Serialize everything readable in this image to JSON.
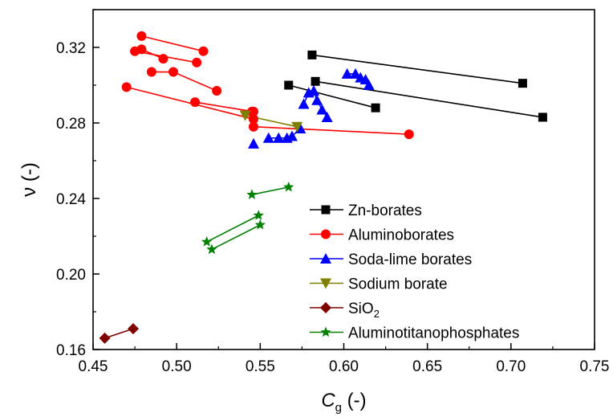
{
  "chart_data": {
    "type": "scatter",
    "xlabel": {
      "main": "C",
      "sub": "g",
      "unit": " (-)"
    },
    "ylabel": "ν (-)",
    "xlim": [
      0.45,
      0.75
    ],
    "ylim": [
      0.16,
      0.34
    ],
    "xticks": [
      "0.45",
      "0.50",
      "0.55",
      "0.60",
      "0.65",
      "0.70",
      "0.75"
    ],
    "yticks": [
      "0.16",
      "0.20",
      "0.24",
      "0.28",
      "0.32"
    ],
    "legend_position": "right",
    "series": [
      {
        "name": "Zn-borates",
        "color": "#000000",
        "marker": "square",
        "points": [
          [
            0.581,
            0.316
          ],
          [
            0.707,
            0.301
          ],
          [
            0.583,
            0.302
          ],
          [
            0.719,
            0.283
          ],
          [
            0.567,
            0.3
          ],
          [
            0.619,
            0.288
          ]
        ],
        "segments": [
          [
            0,
            1
          ],
          [
            2,
            3
          ],
          [
            4,
            5
          ]
        ]
      },
      {
        "name": "Aluminoborates",
        "color": "#ff0000",
        "marker": "circle",
        "points": [
          [
            0.479,
            0.326
          ],
          [
            0.516,
            0.318
          ],
          [
            0.475,
            0.318
          ],
          [
            0.512,
            0.312
          ],
          [
            0.479,
            0.319
          ],
          [
            0.492,
            0.314
          ],
          [
            0.485,
            0.307
          ],
          [
            0.498,
            0.307
          ],
          [
            0.524,
            0.297
          ],
          [
            0.47,
            0.299
          ],
          [
            0.546,
            0.282
          ],
          [
            0.511,
            0.291
          ],
          [
            0.546,
            0.286
          ],
          [
            0.545,
            0.286
          ],
          [
            0.546,
            0.278
          ],
          [
            0.639,
            0.274
          ]
        ],
        "segments": [
          [
            0,
            1
          ],
          [
            2,
            3
          ],
          [
            4,
            5
          ],
          [
            6,
            7
          ],
          [
            7,
            8
          ],
          [
            9,
            10
          ],
          [
            11,
            12
          ],
          [
            13,
            14
          ],
          [
            14,
            15
          ]
        ]
      },
      {
        "name": "Soda-lime borates",
        "color": "#0000ff",
        "marker": "triangle-up",
        "points": [
          [
            0.546,
            0.269
          ],
          [
            0.555,
            0.272
          ],
          [
            0.561,
            0.272
          ],
          [
            0.566,
            0.272
          ],
          [
            0.569,
            0.273
          ],
          [
            0.574,
            0.277
          ],
          [
            0.576,
            0.29
          ],
          [
            0.579,
            0.296
          ],
          [
            0.582,
            0.297
          ],
          [
            0.584,
            0.292
          ],
          [
            0.587,
            0.287
          ],
          [
            0.59,
            0.283
          ],
          [
            0.602,
            0.306
          ],
          [
            0.607,
            0.306
          ],
          [
            0.61,
            0.304
          ],
          [
            0.613,
            0.303
          ],
          [
            0.615,
            0.3
          ]
        ],
        "segments": [
          [
            1,
            2
          ],
          [
            2,
            3
          ],
          [
            3,
            4
          ],
          [
            4,
            5
          ],
          [
            6,
            7
          ],
          [
            7,
            8
          ],
          [
            8,
            9
          ],
          [
            9,
            10
          ],
          [
            10,
            11
          ],
          [
            12,
            13
          ],
          [
            13,
            14
          ],
          [
            14,
            15
          ],
          [
            15,
            16
          ]
        ]
      },
      {
        "name": "Sodium borate",
        "color": "#808000",
        "marker": "triangle-down",
        "points": [
          [
            0.541,
            0.284
          ],
          [
            0.572,
            0.278
          ]
        ],
        "segments": [
          [
            0,
            1
          ]
        ]
      },
      {
        "name": "SiO2",
        "legend_label": {
          "main": "SiO",
          "sub": "2"
        },
        "color": "#800000",
        "marker": "diamond",
        "points": [
          [
            0.457,
            0.166
          ],
          [
            0.474,
            0.171
          ]
        ],
        "segments": [
          [
            0,
            1
          ]
        ]
      },
      {
        "name": "Aluminotitanophosphates",
        "color": "#008000",
        "marker": "star",
        "points": [
          [
            0.545,
            0.242
          ],
          [
            0.567,
            0.246
          ],
          [
            0.518,
            0.217
          ],
          [
            0.549,
            0.231
          ],
          [
            0.521,
            0.213
          ],
          [
            0.55,
            0.226
          ]
        ],
        "segments": [
          [
            0,
            1
          ],
          [
            2,
            3
          ],
          [
            4,
            5
          ]
        ]
      }
    ]
  }
}
